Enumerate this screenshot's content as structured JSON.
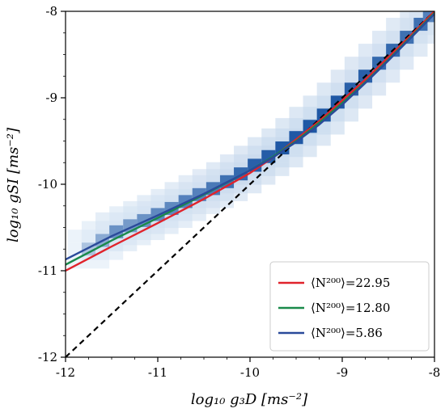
{
  "chart_data": {
    "type": "line",
    "title": "",
    "xlabel": "log₁₀ g₃D [ms⁻²]",
    "ylabel": "log₁₀ gSI [ms⁻²]",
    "xlim": [
      -12,
      -8
    ],
    "ylim": [
      -12,
      -8
    ],
    "xticks": [
      -12,
      -11,
      -10,
      -9,
      -8
    ],
    "yticks": [
      -12,
      -11,
      -10,
      -9,
      -8
    ],
    "xtick_labels": [
      "-12",
      "-11",
      "-10",
      "-9",
      "-8"
    ],
    "ytick_labels": [
      "-12",
      "-11",
      "-10",
      "-9",
      "-8"
    ],
    "grid": false,
    "legend_position": "bottom-right",
    "background_histogram": {
      "description": "2D density of points along the relation",
      "cells": [
        {
          "x": -11.75,
          "y": -10.75,
          "w": 0.3
        },
        {
          "x": -11.6,
          "y": -10.65,
          "w": 0.45
        },
        {
          "x": -11.45,
          "y": -10.55,
          "w": 0.6
        },
        {
          "x": -11.3,
          "y": -10.48,
          "w": 0.55
        },
        {
          "x": -11.15,
          "y": -10.42,
          "w": 0.6
        },
        {
          "x": -11.0,
          "y": -10.35,
          "w": 0.65
        },
        {
          "x": -10.85,
          "y": -10.28,
          "w": 0.65
        },
        {
          "x": -10.7,
          "y": -10.2,
          "w": 0.7
        },
        {
          "x": -10.55,
          "y": -10.12,
          "w": 0.7
        },
        {
          "x": -10.4,
          "y": -10.05,
          "w": 0.75
        },
        {
          "x": -10.25,
          "y": -9.97,
          "w": 0.8
        },
        {
          "x": -10.1,
          "y": -9.88,
          "w": 0.85
        },
        {
          "x": -9.95,
          "y": -9.78,
          "w": 0.9
        },
        {
          "x": -9.8,
          "y": -9.68,
          "w": 0.92
        },
        {
          "x": -9.65,
          "y": -9.58,
          "w": 0.95
        },
        {
          "x": -9.5,
          "y": -9.46,
          "w": 0.95
        },
        {
          "x": -9.35,
          "y": -9.33,
          "w": 0.95
        },
        {
          "x": -9.2,
          "y": -9.2,
          "w": 0.95
        },
        {
          "x": -9.05,
          "y": -9.05,
          "w": 0.95
        },
        {
          "x": -8.9,
          "y": -8.9,
          "w": 0.9
        },
        {
          "x": -8.75,
          "y": -8.75,
          "w": 0.9
        },
        {
          "x": -8.6,
          "y": -8.6,
          "w": 0.85
        },
        {
          "x": -8.45,
          "y": -8.45,
          "w": 0.85
        },
        {
          "x": -8.3,
          "y": -8.3,
          "w": 0.8
        },
        {
          "x": -8.15,
          "y": -8.15,
          "w": 0.8
        },
        {
          "x": -8.05,
          "y": -8.05,
          "w": 0.7
        }
      ]
    },
    "series": [
      {
        "name": "⟨N²⁰⁰⟩=22.95",
        "color": "#e0232b",
        "x": [
          -12.0,
          -11.5,
          -11.0,
          -10.5,
          -10.0,
          -9.75,
          -9.5,
          -9.25,
          -9.0,
          -8.75,
          -8.5,
          -8.25,
          -8.0
        ],
        "y": [
          -11.0,
          -10.72,
          -10.45,
          -10.17,
          -9.87,
          -9.69,
          -9.48,
          -9.27,
          -9.03,
          -8.79,
          -8.53,
          -8.27,
          -8.0
        ]
      },
      {
        "name": "⟨N²⁰⁰⟩=12.80",
        "color": "#1a8a4a",
        "x": [
          -12.0,
          -11.5,
          -11.0,
          -10.5,
          -10.0,
          -9.75,
          -9.5,
          -9.25,
          -9.0,
          -8.75,
          -8.5,
          -8.25,
          -8.0
        ],
        "y": [
          -10.93,
          -10.65,
          -10.39,
          -10.12,
          -9.84,
          -9.68,
          -9.5,
          -9.29,
          -9.06,
          -8.82,
          -8.56,
          -8.29,
          -8.02
        ]
      },
      {
        "name": "⟨N²⁰⁰⟩=5.86",
        "color": "#2a4a9a",
        "x": [
          -12.0,
          -11.5,
          -11.0,
          -10.5,
          -10.0,
          -9.75,
          -9.5,
          -9.25,
          -9.0,
          -8.75,
          -8.5,
          -8.25,
          -8.0
        ],
        "y": [
          -10.87,
          -10.6,
          -10.36,
          -10.11,
          -9.84,
          -9.69,
          -9.51,
          -9.31,
          -9.08,
          -8.83,
          -8.57,
          -8.3,
          -8.03
        ]
      }
    ],
    "reference_line": {
      "style": "dashed",
      "color": "#000000",
      "x": [
        -12,
        -8
      ],
      "y": [
        -12,
        -8
      ]
    }
  }
}
